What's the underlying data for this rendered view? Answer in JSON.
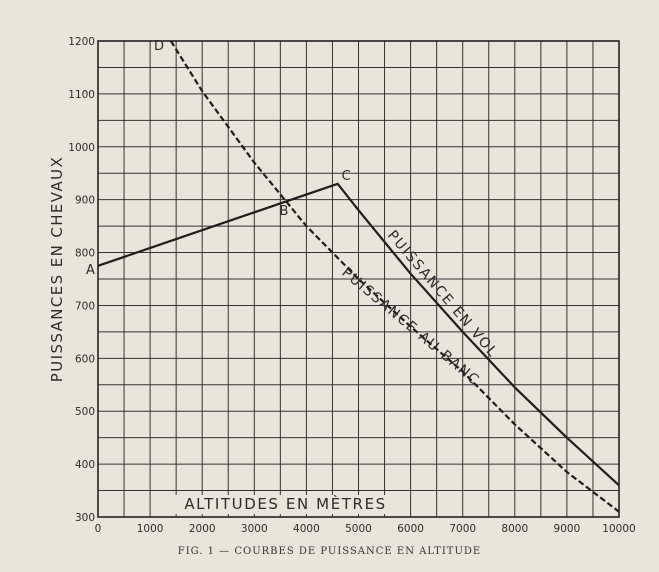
{
  "chart_data": {
    "type": "line",
    "ylabel": "PUISSANCES EN CHEVAUX",
    "xlabel": "ALTITUDES EN MÈTRES",
    "xlim": [
      0,
      10000
    ],
    "ylim": [
      300,
      1200
    ],
    "x_ticks": [
      "0",
      "1000",
      "2000",
      "3000",
      "4000",
      "5000",
      "6000",
      "7000",
      "8000",
      "9000",
      "10000"
    ],
    "y_ticks": [
      "300",
      "400",
      "500",
      "600",
      "700",
      "800",
      "900",
      "1000",
      "1100",
      "1200"
    ],
    "grid": true,
    "series": [
      {
        "name": "PUISSANCE EN VOL",
        "style": "solid",
        "x": [
          0,
          4600,
          5000,
          6000,
          7000,
          8000,
          9000,
          10000
        ],
        "y": [
          775,
          930,
          880,
          760,
          650,
          545,
          450,
          360
        ]
      },
      {
        "name": "PUISSANCE AU BANC",
        "style": "dashed",
        "x": [
          1400,
          2000,
          3000,
          4000,
          5000,
          6000,
          7000,
          8000,
          9000,
          10000
        ],
        "y": [
          1200,
          1105,
          970,
          850,
          750,
          660,
          575,
          475,
          385,
          310
        ]
      }
    ],
    "points": [
      {
        "label": "A",
        "x": 0,
        "y": 775
      },
      {
        "label": "B",
        "x": 3600,
        "y": 905
      },
      {
        "label": "C",
        "x": 4600,
        "y": 930
      },
      {
        "label": "D",
        "x": 1400,
        "y": 1200
      }
    ]
  },
  "caption": "FIG. 1 — COURBES DE PUISSANCE EN ALTITUDE"
}
